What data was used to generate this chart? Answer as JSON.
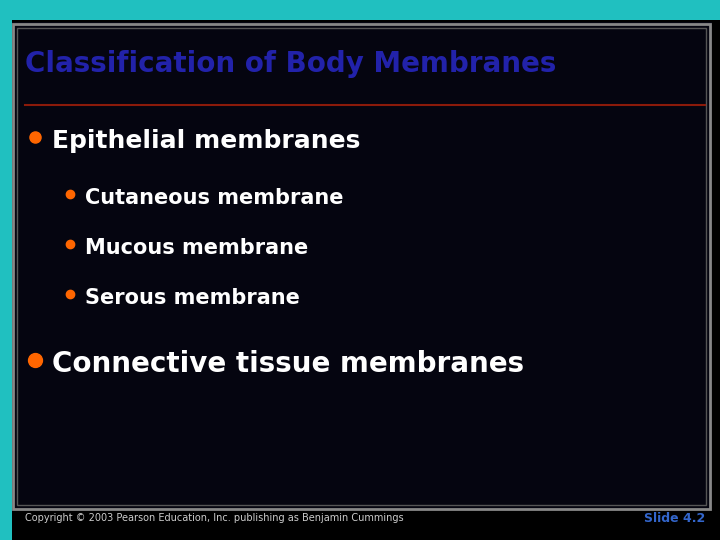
{
  "background_color": "#000000",
  "outer_bg_color": "#008080",
  "slide_bg_color": "#050510",
  "border_outer_color": "#20c0c0",
  "border_inner_color": "#ffffff",
  "title": "Classification of Body Membranes",
  "title_color": "#2222aa",
  "title_fontsize": 20,
  "divider_color": "#8b1a0a",
  "bullet_color": "#ff6600",
  "main_bullet_1": "Epithelial membranes",
  "sub_bullets": [
    "Cutaneous membrane",
    "Mucous membrane",
    "Serous membrane"
  ],
  "main_bullet_2": "Connective tissue membranes",
  "text_color": "#ffffff",
  "main_fontsize": 18,
  "sub_fontsize": 15,
  "connective_fontsize": 20,
  "footer_text": "Copyright © 2003 Pearson Education, Inc. publishing as Benjamin Cummings",
  "footer_color": "#cccccc",
  "footer_fontsize": 7,
  "slide_label": "Slide 4.2",
  "slide_label_color": "#3366cc",
  "slide_label_fontsize": 9
}
